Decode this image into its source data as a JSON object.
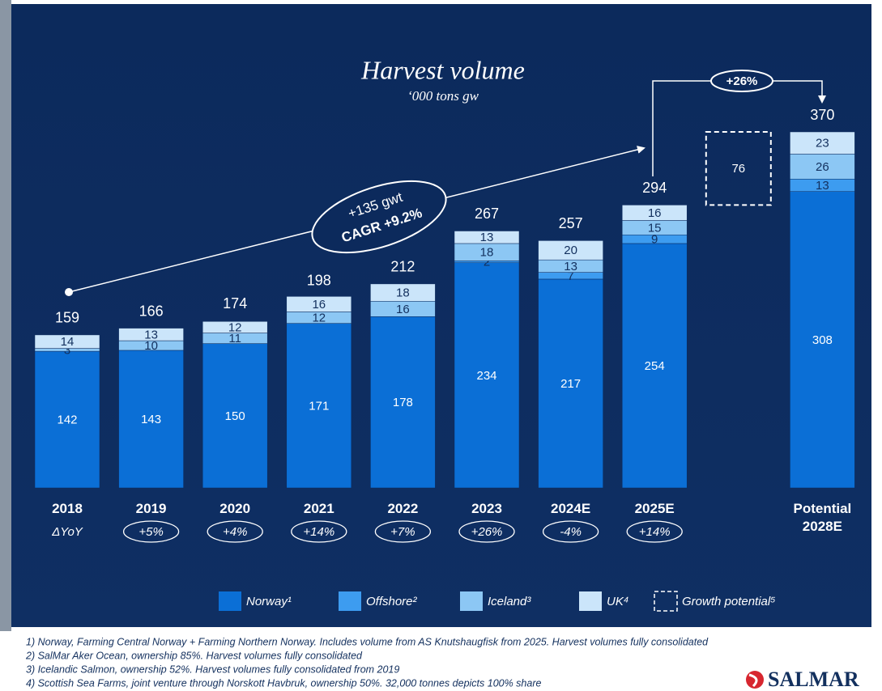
{
  "chart_data": {
    "type": "bar",
    "stacked": true,
    "title": "Harvest volume",
    "subtitle": "‘000 tons gw",
    "categories": [
      "2018",
      "2019",
      "2020",
      "2021",
      "2022",
      "2023",
      "2024E",
      "2025E",
      null,
      "Potential 2028E"
    ],
    "series": [
      {
        "name": "Norway¹",
        "color": "#0b6fd6",
        "label_color": "#ffffff",
        "values": [
          142,
          143,
          150,
          171,
          178,
          234,
          217,
          254,
          null,
          308
        ]
      },
      {
        "name": "Offshore²",
        "color": "#3d9cf0",
        "label_color": "#13305e",
        "values": [
          null,
          null,
          null,
          null,
          null,
          2,
          7,
          9,
          null,
          13
        ]
      },
      {
        "name": "Iceland³",
        "color": "#8cc7f4",
        "label_color": "#13305e",
        "values": [
          3,
          10,
          11,
          12,
          16,
          18,
          13,
          15,
          null,
          26
        ]
      },
      {
        "name": "UK⁴",
        "color": "#cbe5fa",
        "label_color": "#13305e",
        "values": [
          14,
          13,
          12,
          16,
          18,
          13,
          20,
          16,
          null,
          23
        ]
      },
      {
        "name": "Growth potential⁵",
        "color": "#ffffff",
        "dashed": true,
        "label_color": "#ffffff",
        "values": [
          null,
          null,
          null,
          null,
          null,
          null,
          null,
          null,
          76,
          null
        ]
      }
    ],
    "totals": [
      159,
      166,
      174,
      198,
      212,
      267,
      257,
      294,
      null,
      370
    ],
    "yoy_label": "ΔYoY",
    "yoy": [
      null,
      "+5%",
      "+4%",
      "+14%",
      "+7%",
      "+26%",
      "-4%",
      "+14%",
      null,
      null
    ],
    "annotations": {
      "cagr_line1": "+135 gwt",
      "cagr_line2": "CAGR +9.2%",
      "growth": "+26%"
    },
    "footnotes": [
      "1) Norway, Farming Central Norway + Farming Northern Norway.  Includes volume from AS Knutshaugfisk from 2025. Harvest volumes fully consolidated",
      "2) SalMar Aker Ocean, ownership 85%. Harvest volumes fully consolidated",
      "3) Icelandic Salmon, ownership 52%. Harvest volumes fully consolidated from 2019",
      "4) Scottish Sea Farms, joint venture through Norskott Havbruk, ownership 50%. 32,000 tonnes depicts 100% share"
    ],
    "brand": "SALMAR"
  }
}
